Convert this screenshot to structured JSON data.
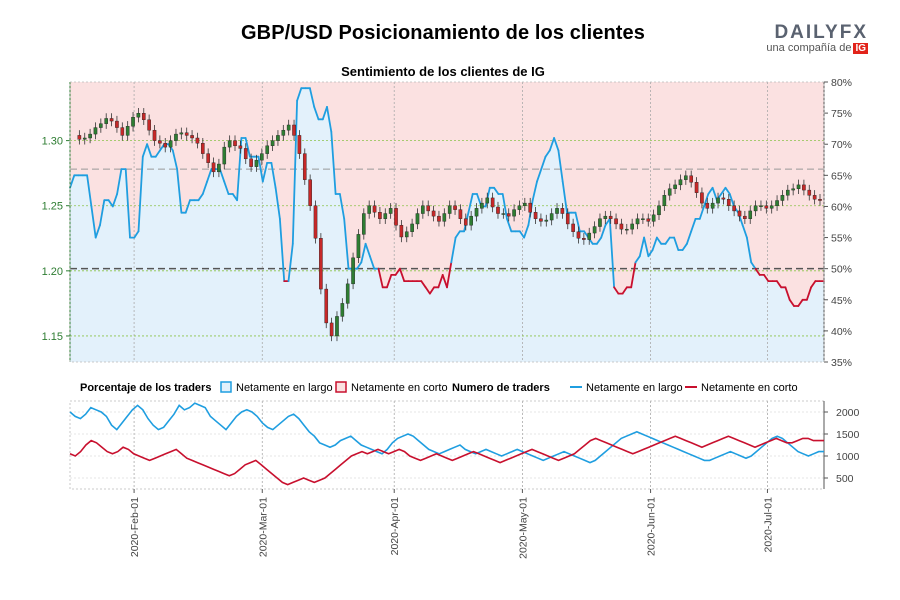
{
  "title": "GBP/USD Posicionamiento de los clientes",
  "subtitle": "Sentimiento de los clientes de IG",
  "logo": {
    "brand": "DAILYFX",
    "tagline": "una compañía de",
    "badge": "IG"
  },
  "colors": {
    "long": "#1f9ee0",
    "short": "#c8102e",
    "long_fill": "#e3f1fb",
    "short_fill": "#fbe1e1",
    "candle_up": "#2e7d32",
    "candle_down": "#c62828",
    "price_axis": "#2e7d32"
  },
  "legend": {
    "pct_heading": "Porcentaje de los traders",
    "pct_long": "Netamente en largo",
    "pct_short": "Netamente en corto",
    "num_heading": "Numero de traders",
    "num_long": "Netamente en largo",
    "num_short": "Netamente en corto"
  },
  "chart_data": [
    {
      "type": "line",
      "panel": "main",
      "series": [
        {
          "name": "Netamente en largo",
          "values": [
            63,
            65,
            65,
            65,
            65,
            60,
            55,
            57,
            61,
            61,
            60,
            62,
            66,
            66,
            55,
            55,
            56,
            68,
            70,
            68,
            68,
            69,
            70,
            70,
            69,
            66,
            59,
            59,
            61,
            61,
            61,
            62,
            64,
            66,
            66,
            66,
            64,
            62,
            62,
            61,
            71,
            71,
            68,
            68,
            68,
            64,
            67,
            67,
            63,
            58,
            48,
            48,
            54,
            77,
            79,
            79,
            79,
            76,
            74,
            74,
            76,
            72,
            62,
            62,
            58,
            50,
            50,
            50,
            51,
            54,
            52,
            50,
            50,
            47,
            47,
            49,
            49,
            50,
            48,
            48,
            48,
            48,
            48,
            47,
            46,
            47,
            47,
            49,
            47,
            51,
            55,
            56,
            56,
            59,
            62,
            62,
            60,
            60,
            63,
            63,
            62,
            62,
            58,
            56,
            56,
            56,
            55,
            57,
            61,
            64,
            66,
            68,
            69,
            71,
            69,
            64,
            59,
            59,
            59,
            56,
            56,
            55,
            54,
            54,
            55,
            57,
            58,
            47,
            46,
            46,
            47,
            47,
            51,
            52,
            55,
            52,
            53,
            55,
            54,
            54,
            55,
            55,
            53,
            53,
            54,
            56,
            58,
            58,
            60,
            62,
            63,
            61,
            62,
            63,
            62,
            60,
            59,
            57,
            55,
            51,
            50,
            49,
            49,
            48,
            48,
            48,
            47,
            47,
            45,
            44,
            44,
            45,
            45,
            47,
            48,
            48,
            48
          ]
        }
      ],
      "price_line": [
        1.304,
        1.301,
        1.302,
        1.305,
        1.31,
        1.313,
        1.317,
        1.315,
        1.31,
        1.304,
        1.311,
        1.318,
        1.321,
        1.316,
        1.308,
        1.3,
        1.298,
        1.295,
        1.3,
        1.305,
        1.306,
        1.304,
        1.302,
        1.298,
        1.29,
        1.283,
        1.276,
        1.282,
        1.295,
        1.3,
        1.296,
        1.294,
        1.286,
        1.28,
        1.285,
        1.29,
        1.296,
        1.3,
        1.304,
        1.308,
        1.312,
        1.304,
        1.29,
        1.27,
        1.25,
        1.225,
        1.186,
        1.16,
        1.15,
        1.165,
        1.175,
        1.19,
        1.21,
        1.228,
        1.244,
        1.25,
        1.245,
        1.24,
        1.244,
        1.248,
        1.235,
        1.226,
        1.23,
        1.236,
        1.244,
        1.25,
        1.246,
        1.242,
        1.238,
        1.244,
        1.25,
        1.247,
        1.24,
        1.235,
        1.242,
        1.248,
        1.252,
        1.256,
        1.249,
        1.244,
        1.244,
        1.242,
        1.247,
        1.25,
        1.252,
        1.245,
        1.24,
        1.238,
        1.239,
        1.244,
        1.248,
        1.244,
        1.236,
        1.23,
        1.225,
        1.224,
        1.229,
        1.234,
        1.24,
        1.242,
        1.24,
        1.236,
        1.232,
        1.232,
        1.236,
        1.24,
        1.24,
        1.238,
        1.243,
        1.25,
        1.258,
        1.263,
        1.266,
        1.27,
        1.273,
        1.268,
        1.26,
        1.252,
        1.248,
        1.252,
        1.256,
        1.255,
        1.25,
        1.246,
        1.242,
        1.24,
        1.246,
        1.25,
        1.25,
        1.248,
        1.25,
        1.254,
        1.258,
        1.262,
        1.263,
        1.266,
        1.262,
        1.258,
        1.255,
        1.254
      ]
    },
    {
      "type": "line",
      "panel": "traders",
      "series": [
        {
          "name": "Netamente en largo",
          "values": [
            2000,
            1900,
            1850,
            1950,
            2100,
            2050,
            2000,
            1900,
            1700,
            1600,
            1750,
            1900,
            2050,
            2150,
            2050,
            1850,
            1700,
            1600,
            1650,
            1800,
            1950,
            2150,
            2050,
            2100,
            2200,
            2150,
            2100,
            1900,
            1800,
            1700,
            1600,
            1750,
            1900,
            2000,
            2050,
            2000,
            1900,
            1750,
            1650,
            1600,
            1700,
            1800,
            1900,
            1950,
            1850,
            1700,
            1550,
            1450,
            1300,
            1250,
            1200,
            1250,
            1350,
            1400,
            1450,
            1350,
            1250,
            1200,
            1150,
            1100,
            1050,
            1150,
            1300,
            1400,
            1450,
            1500,
            1450,
            1350,
            1250,
            1150,
            1100,
            1050,
            1100,
            1150,
            1200,
            1250,
            1150,
            1100,
            1050,
            1100,
            1150,
            1100,
            1050,
            1000,
            1050,
            1100,
            1150,
            1100,
            1050,
            1000,
            950,
            900,
            950,
            1000,
            1050,
            1100,
            1050,
            1000,
            950,
            900,
            850,
            900,
            1000,
            1100,
            1200,
            1300,
            1400,
            1450,
            1500,
            1550,
            1500,
            1450,
            1400,
            1350,
            1300,
            1250,
            1200,
            1150,
            1100,
            1050,
            1000,
            950,
            900,
            900,
            950,
            1000,
            1050,
            1100,
            1050,
            1000,
            950,
            1000,
            1100,
            1200,
            1300,
            1400,
            1450,
            1400,
            1300,
            1200,
            1100,
            1050,
            1000,
            1050,
            1100,
            1100
          ]
        },
        {
          "name": "Netamente en corto",
          "values": [
            1050,
            1000,
            1100,
            1250,
            1350,
            1300,
            1200,
            1100,
            1050,
            1100,
            1200,
            1150,
            1050,
            1000,
            950,
            900,
            950,
            1000,
            1050,
            1100,
            1150,
            1050,
            950,
            900,
            850,
            800,
            750,
            700,
            650,
            600,
            550,
            600,
            700,
            800,
            850,
            900,
            800,
            700,
            600,
            500,
            400,
            350,
            400,
            450,
            500,
            450,
            400,
            450,
            500,
            600,
            700,
            800,
            900,
            1000,
            1050,
            1100,
            1050,
            1100,
            1150,
            1100,
            1050,
            1100,
            1150,
            1100,
            1000,
            950,
            900,
            950,
            1000,
            1050,
            1000,
            950,
            900,
            950,
            1000,
            1050,
            1100,
            1050,
            1000,
            950,
            900,
            850,
            900,
            950,
            1000,
            1050,
            1100,
            1150,
            1100,
            1050,
            1000,
            950,
            900,
            950,
            1000,
            1050,
            1150,
            1250,
            1350,
            1400,
            1350,
            1300,
            1250,
            1200,
            1150,
            1100,
            1050,
            1100,
            1150,
            1200,
            1250,
            1300,
            1350,
            1400,
            1450,
            1400,
            1350,
            1300,
            1250,
            1200,
            1250,
            1300,
            1350,
            1400,
            1450,
            1400,
            1350,
            1300,
            1250,
            1200,
            1250,
            1300,
            1350,
            1400,
            1350,
            1300,
            1300,
            1350,
            1400,
            1400,
            1350,
            1350,
            1350
          ]
        }
      ]
    }
  ],
  "axes": {
    "price_ticks": [
      "1.30",
      "1.25",
      "1.20",
      "1.15"
    ],
    "price_tick_values": [
      1.3,
      1.25,
      1.2,
      1.15
    ],
    "price_range": [
      1.13,
      1.345
    ],
    "pct_ticks": [
      "80%",
      "75%",
      "70%",
      "65%",
      "60%",
      "55%",
      "50%",
      "45%",
      "40%",
      "35%"
    ],
    "pct_tick_values": [
      80,
      75,
      70,
      65,
      60,
      55,
      50,
      45,
      40,
      35
    ],
    "pct_range": [
      35,
      80
    ],
    "traders_ticks": [
      "2000",
      "1500",
      "1000",
      "500"
    ],
    "traders_tick_values": [
      2000,
      1500,
      1000,
      500
    ],
    "traders_range": [
      250,
      2250
    ],
    "date_labels": [
      "2020-Feb-01",
      "2020-Mar-01",
      "2020-Apr-01",
      "2020-May-01",
      "2020-Jun-01",
      "2020-Jul-01"
    ],
    "date_positions": [
      0.085,
      0.255,
      0.43,
      0.6,
      0.77,
      0.925
    ],
    "reference_lines_pct": [
      50,
      66
    ]
  }
}
